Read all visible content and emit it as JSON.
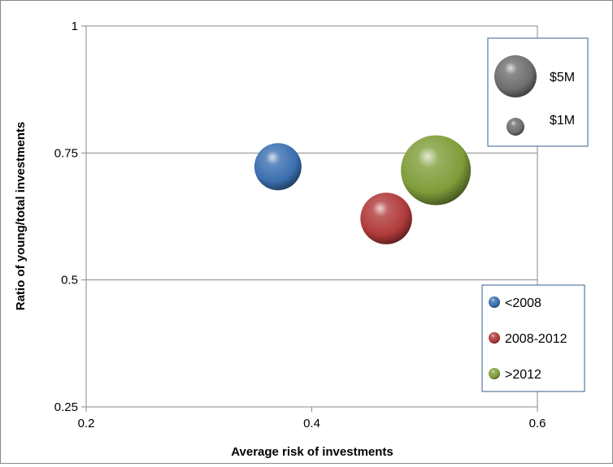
{
  "chart_data": {
    "type": "scatter",
    "subtype": "bubble",
    "title": "",
    "xlabel": "Average risk of investments",
    "ylabel": "Ratio of young/total investments",
    "xlim": [
      0.2,
      0.6
    ],
    "ylim": [
      0.25,
      1
    ],
    "xticks": [
      0.2,
      0.4,
      0.6
    ],
    "xtick_labels": [
      "0.2",
      "0.4",
      "0.6"
    ],
    "yticks": [
      0.25,
      0.5,
      0.75,
      1
    ],
    "ytick_labels": [
      "0.25",
      "0.5",
      "0.75",
      "1"
    ],
    "grid": "horizontal major gridlines",
    "legend_placement": "right",
    "series": [
      {
        "name": "<2008",
        "color": "#3b6fb0",
        "x": [
          0.37
        ],
        "y": [
          0.723
        ],
        "size": [
          2.0
        ]
      },
      {
        "name": "2008-2012",
        "color": "#b03a3a",
        "x": [
          0.466
        ],
        "y": [
          0.621
        ],
        "size": [
          2.4
        ]
      },
      {
        "name": ">2012",
        "color": "#7f9d3a",
        "x": [
          0.51
        ],
        "y": [
          0.716
        ],
        "size": [
          4.4
        ]
      }
    ],
    "size_legend": [
      {
        "label": "$5M",
        "value": 5
      },
      {
        "label": "$1M",
        "value": 1
      }
    ]
  }
}
